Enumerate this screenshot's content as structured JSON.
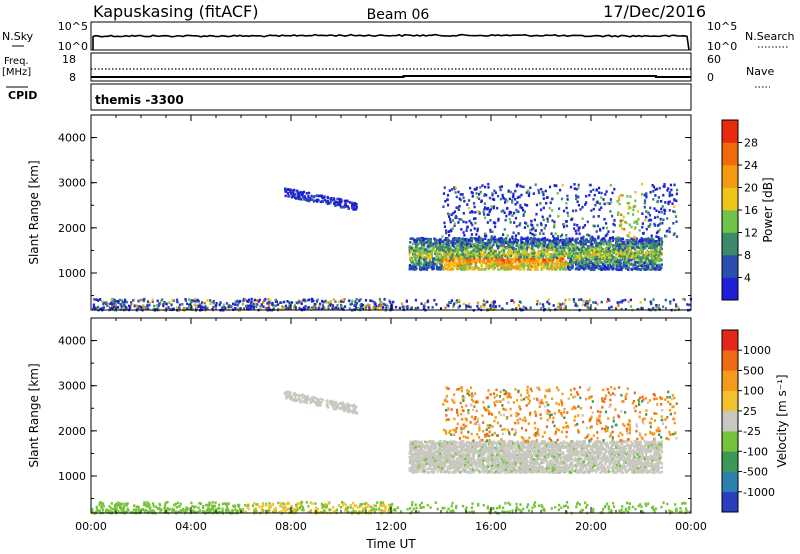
{
  "header": {
    "station": "Kapuskasing (fitACF)",
    "beam": "Beam 06",
    "date": "17/Dec/2016"
  },
  "nsky_panel": {
    "label": "N.Sky",
    "left_top": "10^5",
    "left_bottom": "10^0",
    "right_top": "10^5",
    "right_bottom": "10^0",
    "right_label": "N.Search"
  },
  "freq_panel": {
    "label_line1": "Freq.",
    "label_line2": "[MHz]",
    "left_top": "18",
    "left_bottom": "8",
    "right_top": "60",
    "right_bottom": "0",
    "right_label": "Nave"
  },
  "cpid": {
    "label": "CPID",
    "value": "themis -3300"
  },
  "x_axis": {
    "label": "Time UT",
    "ticks": [
      "00:00",
      "04:00",
      "08:00",
      "12:00",
      "16:00",
      "20:00",
      "00:00"
    ]
  },
  "y_axis": {
    "label": "Slant Range [km]",
    "ticks": [
      "1000",
      "2000",
      "3000",
      "4000"
    ]
  },
  "power_bar": {
    "label": "Power [dB]",
    "ticks": [
      "4",
      "8",
      "12",
      "16",
      "20",
      "24",
      "28"
    ],
    "colors": [
      "#1f1fd8",
      "#2a4fb0",
      "#3b8a6a",
      "#6fc24a",
      "#f0c51a",
      "#f59a10",
      "#f06a0a",
      "#e82b0e"
    ]
  },
  "velocity_bar": {
    "label": "Velocity [m s⁻¹]",
    "ticks": [
      "1000",
      "500",
      "100",
      "25",
      "-25",
      "-100",
      "-500",
      "-1000"
    ],
    "colors": [
      "#2a3fc0",
      "#2d7fb0",
      "#3a9a55",
      "#76c23a",
      "#c8c8c0",
      "#f2c22e",
      "#f59a1a",
      "#f06a14",
      "#e5261a"
    ]
  },
  "chart_data": {
    "type": "heatmap",
    "x_range_ut_hours": [
      0,
      24
    ],
    "y_range_km": [
      180,
      4500
    ],
    "regions": [
      {
        "name": "near-range",
        "t": [
          0,
          24
        ],
        "r": [
          180,
          450
        ]
      },
      {
        "name": "isolated patch",
        "t": [
          7.7,
          10.6
        ],
        "r": [
          2300,
          2900
        ]
      },
      {
        "name": "main band",
        "t": [
          12.7,
          22.8
        ],
        "r": [
          1100,
          1800
        ]
      },
      {
        "name": "upper echoes",
        "t": [
          14,
          23.4
        ],
        "r": [
          1800,
          3000
        ]
      }
    ]
  }
}
